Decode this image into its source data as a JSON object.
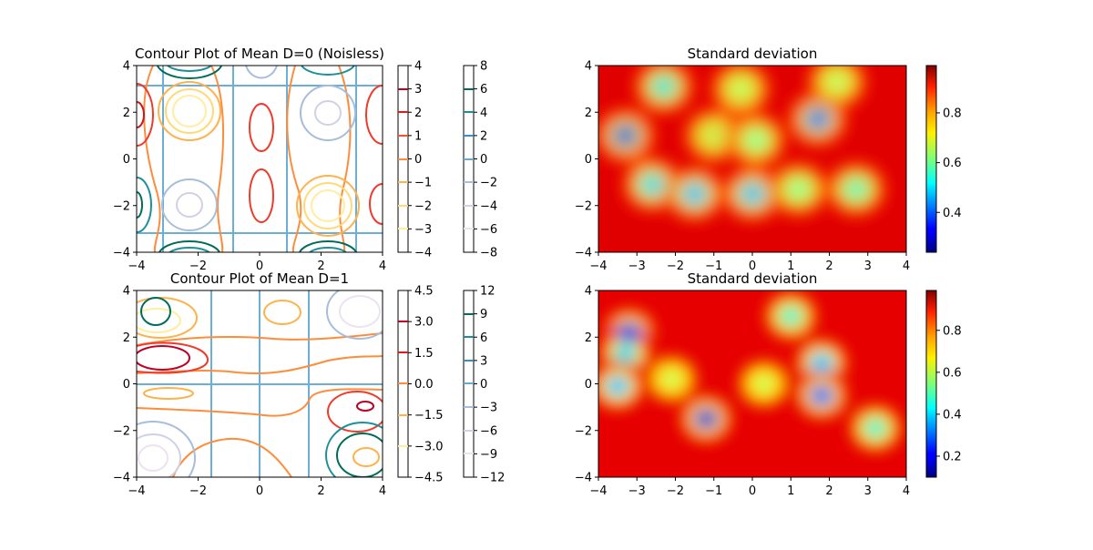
{
  "figure": {
    "panels": {
      "mean0": {
        "title": "Contour Plot of Mean D=0 (Noisless)",
        "xticks": [
          -4,
          -2,
          0,
          2,
          4
        ],
        "yticks": [
          -4,
          -2,
          0,
          2,
          4
        ],
        "cbar1_ticks": [
          "4",
          "3",
          "2",
          "1",
          "0",
          "−1",
          "−2",
          "−3",
          "−4"
        ],
        "cbar2_ticks": [
          "8",
          "6",
          "4",
          "2",
          "0",
          "−2",
          "−4",
          "−6",
          "−8"
        ]
      },
      "std0": {
        "title": "Standard deviation",
        "xticks": [
          -4,
          -3,
          -2,
          -1,
          0,
          1,
          2,
          3,
          4
        ],
        "yticks": [
          -4,
          -2,
          0,
          2,
          4
        ],
        "cbar_ticks": [
          "0.8",
          "0.6",
          "0.4"
        ]
      },
      "mean1": {
        "title": "Contour Plot of Mean D=1",
        "xticks": [
          -4,
          -2,
          0,
          2,
          4
        ],
        "yticks": [
          -4,
          -2,
          0,
          2,
          4
        ],
        "cbar1_ticks": [
          "4.5",
          "3.0",
          "1.5",
          "0.0",
          "−1.5",
          "−3.0",
          "−4.5"
        ],
        "cbar2_ticks": [
          "12",
          "9",
          "6",
          "3",
          "0",
          "−3",
          "−6",
          "−9",
          "−12"
        ]
      },
      "std1": {
        "title": "Standard deviation",
        "xticks": [
          -4,
          -3,
          -2,
          -1,
          0,
          1,
          2,
          3,
          4
        ],
        "yticks": [
          -4,
          -2,
          0,
          2,
          4
        ],
        "cbar_ticks": [
          "0.8",
          "0.6",
          "0.4",
          "0.2"
        ]
      }
    }
  },
  "chart_data": [
    {
      "type": "contour",
      "title": "Contour Plot of Mean D=0 (Noisless)",
      "xlim": [
        -4,
        4
      ],
      "ylim": [
        -4,
        4
      ],
      "levels_series1": [
        -4,
        -3,
        -2,
        -1,
        0,
        1,
        2,
        3,
        4
      ],
      "levels_series2": [
        -8,
        -6,
        -4,
        -2,
        0,
        2,
        4,
        6,
        8
      ],
      "colormap_series1": "YlOrRd",
      "colormap_series2": "PuBuGn",
      "zero_lines_x": [
        -3.1,
        -0.7,
        0.7,
        3.1
      ],
      "zero_lines_y": [
        -3.1,
        3.1
      ]
    },
    {
      "type": "heatmap",
      "title": "Standard deviation",
      "xlim": [
        -4,
        4
      ],
      "ylim": [
        -4,
        4
      ],
      "colormap": "jet",
      "colorbar_range": [
        0.24,
        0.99
      ],
      "low_regions": [
        {
          "x": -3.3,
          "y": 1.0,
          "value": 0.25
        },
        {
          "x": -2.3,
          "y": 3.1,
          "value": 0.45
        },
        {
          "x": -1.0,
          "y": 1.0,
          "value": 0.62
        },
        {
          "x": -2.6,
          "y": -1.1,
          "value": 0.42
        },
        {
          "x": -1.5,
          "y": -1.5,
          "value": 0.38
        },
        {
          "x": 0.0,
          "y": -1.5,
          "value": 0.38
        },
        {
          "x": 0.1,
          "y": 0.8,
          "value": 0.55
        },
        {
          "x": 1.7,
          "y": 1.7,
          "value": 0.3
        },
        {
          "x": 1.2,
          "y": -1.3,
          "value": 0.55
        },
        {
          "x": 2.7,
          "y": -1.3,
          "value": 0.5
        },
        {
          "x": -0.3,
          "y": 3.0,
          "value": 0.6
        },
        {
          "x": 2.2,
          "y": 3.3,
          "value": 0.6
        }
      ]
    },
    {
      "type": "contour",
      "title": "Contour Plot of Mean D=1",
      "xlim": [
        -4,
        4
      ],
      "ylim": [
        -4,
        4
      ],
      "levels_series1": [
        -4.5,
        -3.0,
        -1.5,
        0.0,
        1.5,
        3.0,
        4.5
      ],
      "levels_series2": [
        -12,
        -9,
        -6,
        -3,
        0,
        3,
        6,
        9,
        12
      ],
      "colormap_series1": "YlOrRd",
      "colormap_series2": "PuBuGn",
      "zero_lines_x": [
        -1.6,
        0,
        1.6
      ],
      "zero_lines_y": [
        0
      ]
    },
    {
      "type": "heatmap",
      "title": "Standard deviation",
      "xlim": [
        -4,
        4
      ],
      "ylim": [
        -4,
        4
      ],
      "colormap": "jet",
      "colorbar_range": [
        0.1,
        0.99
      ],
      "low_regions": [
        {
          "x": -3.2,
          "y": 2.2,
          "value": 0.15
        },
        {
          "x": -3.3,
          "y": 1.3,
          "value": 0.35
        },
        {
          "x": -3.5,
          "y": -0.1,
          "value": 0.3
        },
        {
          "x": -1.2,
          "y": -1.5,
          "value": 0.1
        },
        {
          "x": 1.0,
          "y": 2.9,
          "value": 0.4
        },
        {
          "x": 1.8,
          "y": 0.9,
          "value": 0.3
        },
        {
          "x": 1.8,
          "y": -0.5,
          "value": 0.2
        },
        {
          "x": 3.2,
          "y": -1.9,
          "value": 0.4
        },
        {
          "x": -2.1,
          "y": 0.2,
          "value": 0.55
        },
        {
          "x": 0.3,
          "y": 0.0,
          "value": 0.55
        }
      ]
    }
  ]
}
